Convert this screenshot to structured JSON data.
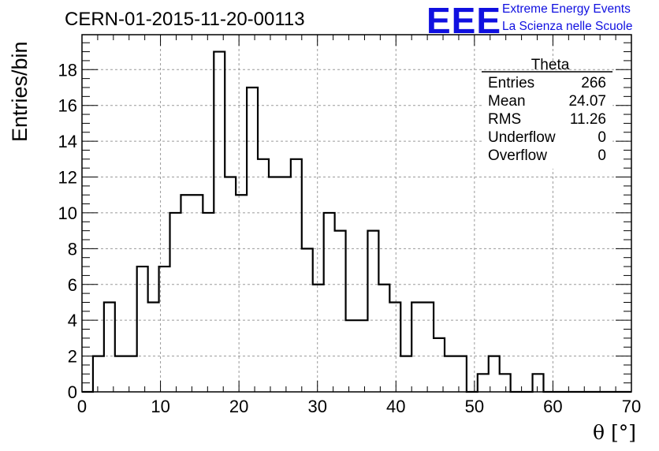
{
  "header": {
    "run_label": "CERN-01-2015-11-20-00113",
    "logo_text": "EEE",
    "logo_line1": "Extreme Energy Events",
    "logo_line2": "La Scienza nelle Scuole"
  },
  "chart_data": {
    "type": "histogram",
    "ylabel": "Entries/bin",
    "xlabel": "θ [°]",
    "xlim": [
      0,
      70
    ],
    "ylim": [
      0,
      19.95
    ],
    "x_ticks": [
      "0",
      "10",
      "20",
      "30",
      "40",
      "50",
      "60",
      "70"
    ],
    "y_ticks": [
      "0",
      "2",
      "4",
      "6",
      "8",
      "10",
      "12",
      "14",
      "16",
      "18"
    ],
    "grid": true,
    "bin_width": 1.4,
    "bin_start": 0,
    "counts": [
      0,
      2,
      5,
      2,
      2,
      7,
      5,
      7,
      10,
      11,
      11,
      10,
      19,
      12,
      11,
      17,
      13,
      12,
      12,
      13,
      8,
      6,
      10,
      9,
      4,
      4,
      9,
      6,
      5,
      2,
      5,
      5,
      3,
      2,
      2,
      0,
      1,
      2,
      1,
      0,
      0,
      1,
      0,
      0,
      0,
      0,
      0,
      0,
      0,
      0
    ],
    "stats_box": {
      "title": "Theta",
      "rows": [
        {
          "label": "Entries",
          "value": "266"
        },
        {
          "label": "Mean",
          "value": "24.07"
        },
        {
          "label": "RMS",
          "value": "11.26"
        },
        {
          "label": "Underflow",
          "value": "0"
        },
        {
          "label": "Overflow",
          "value": "0"
        }
      ]
    }
  }
}
